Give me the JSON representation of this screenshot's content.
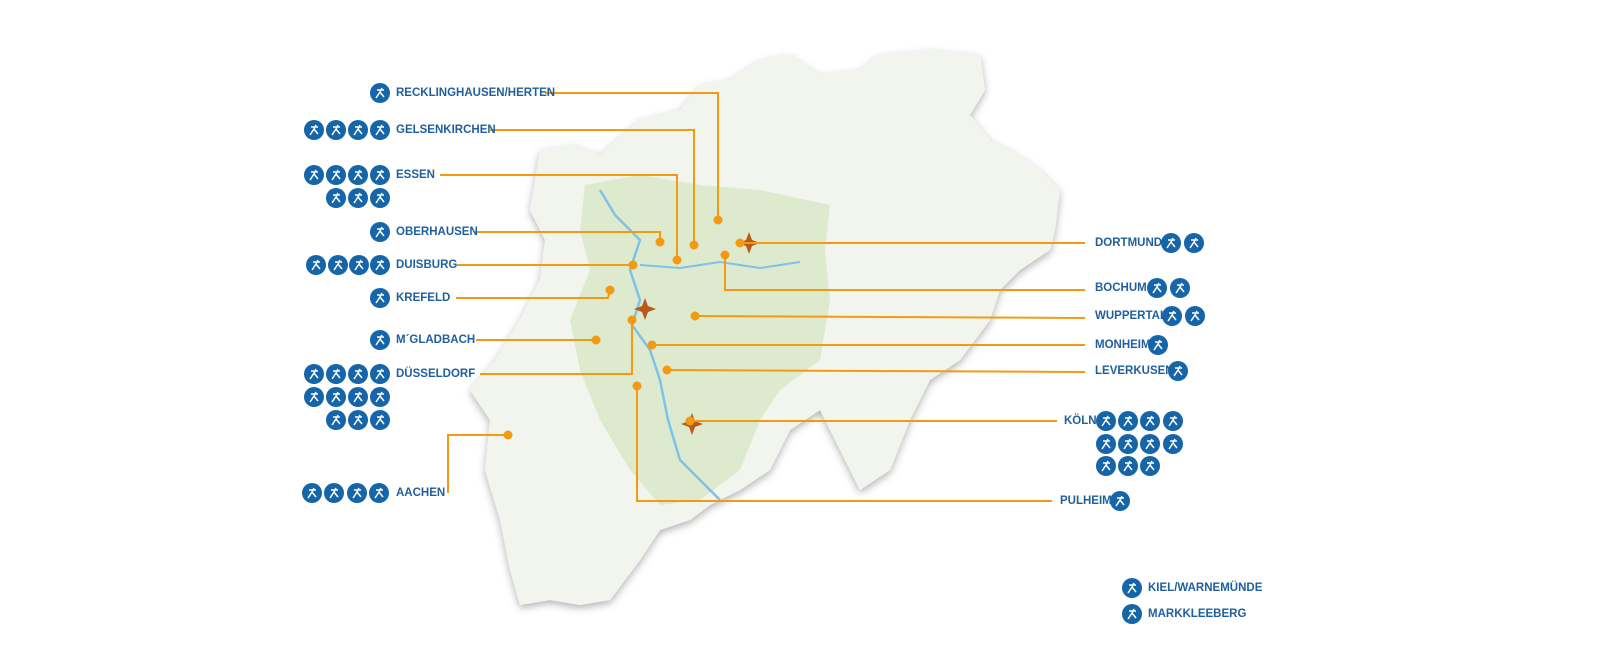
{
  "cities": [
    {
      "label": "RECKLINGHAUSEN/HERTEN"
    },
    {
      "label": "GELSENKIRCHEN"
    },
    {
      "label": "ESSEN"
    },
    {
      "label": "OBERHAUSEN"
    },
    {
      "label": "DUISBURG"
    },
    {
      "label": "KREFELD"
    },
    {
      "label": "M´GLADBACH"
    },
    {
      "label": "DÜSSELDORF"
    },
    {
      "label": "AACHEN"
    },
    {
      "label": "DORTMUND"
    },
    {
      "label": "BOCHUM"
    },
    {
      "label": "WUPPERTAL"
    },
    {
      "label": "MONHEIM"
    },
    {
      "label": "LEVERKUSEN"
    },
    {
      "label": "KÖLN"
    },
    {
      "label": "PULHEIM"
    }
  ],
  "other_venues": [
    {
      "label": "KIEL/WARNEMÜNDE"
    },
    {
      "label": "MARKKLEEBERG"
    }
  ]
}
